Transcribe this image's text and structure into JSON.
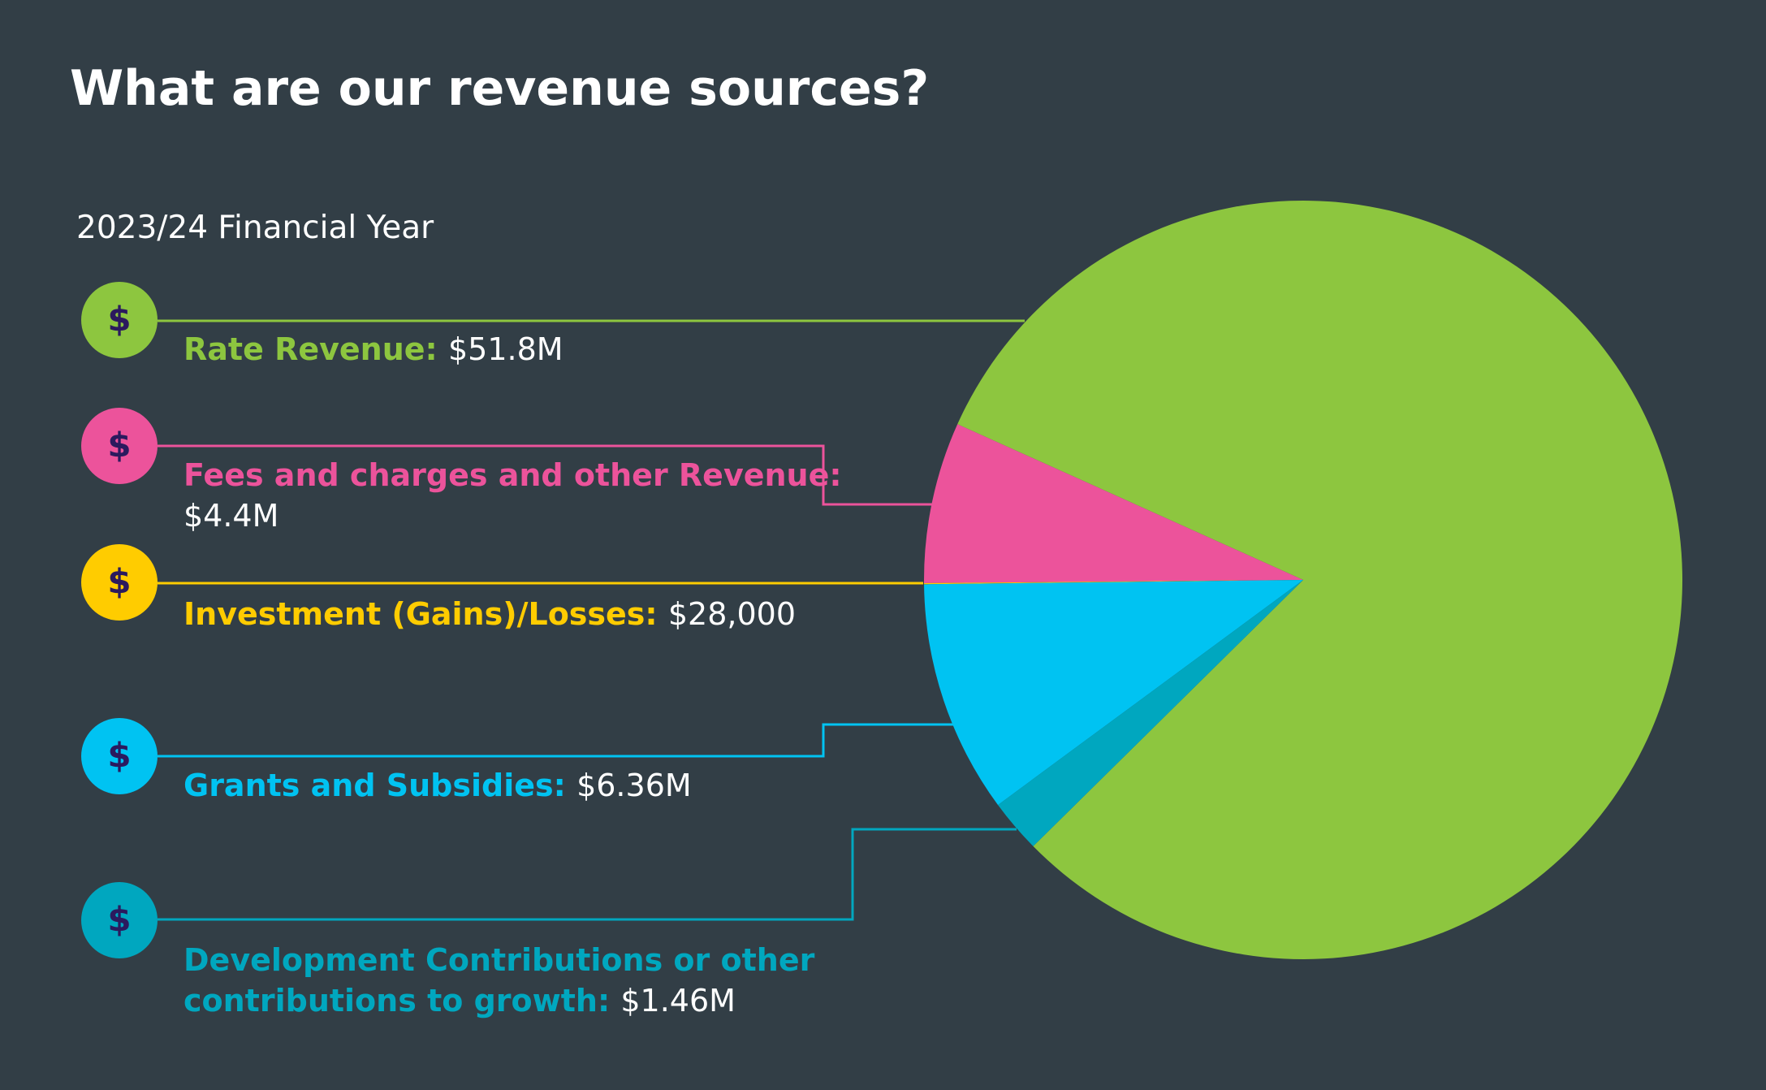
{
  "chart_data": {
    "type": "pie",
    "title": "What are our revenue sources?",
    "subtitle": "2023/24 Financial Year",
    "icon_label": "$",
    "categories": [
      "Rate Revenue:",
      "Fees and charges and other Revenue:",
      "Investment (Gains)/Losses:",
      "Grants and Subsidies:",
      "Development Contributions or other contributions to growth:"
    ],
    "values": [
      51800000,
      4400000,
      28000,
      6360000,
      1460000
    ],
    "value_labels": [
      "$51.8M",
      "$4.4M",
      "$28,000",
      "$6.36M",
      "$1.46M"
    ],
    "colors": [
      "#8dc63f",
      "#ec539b",
      "#ffcc00",
      "#00c3f2",
      "#00a7bf"
    ]
  }
}
